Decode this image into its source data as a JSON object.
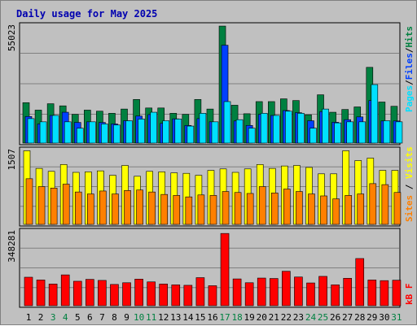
{
  "title": "Daily usage for May 2025",
  "colors": {
    "title": "#0000b0",
    "pages": "#00e0ff",
    "files": "#0040ff",
    "hits": "#008040",
    "visits": "#ffff00",
    "sites": "#ff8000",
    "kbf": "#ff0000",
    "weekend_label": "#008040",
    "weekday_label": "#000000",
    "grid": "#808080",
    "panel_bg": "#c0c0c0"
  },
  "chart_data": [
    {
      "type": "bar",
      "title": "Daily usage for May 2025",
      "panel": "hits-files-pages",
      "ymax_label": "55023",
      "ylim": [
        0,
        55023
      ],
      "categories": [
        "1",
        "2",
        "3",
        "4",
        "5",
        "6",
        "7",
        "8",
        "9",
        "10",
        "11",
        "12",
        "13",
        "14",
        "15",
        "16",
        "17",
        "18",
        "19",
        "20",
        "21",
        "22",
        "23",
        "24",
        "25",
        "26",
        "27",
        "28",
        "29",
        "30",
        "31"
      ],
      "weekend_days": [
        "3",
        "4",
        "10",
        "11",
        "17",
        "18",
        "24",
        "25",
        "31"
      ],
      "legend_labels": [
        "Pages",
        "Files",
        "Hits"
      ],
      "series": [
        {
          "name": "Hits",
          "values": [
            19000,
            15500,
            18500,
            17500,
            13500,
            15500,
            15000,
            14000,
            16000,
            20500,
            16500,
            16500,
            14000,
            13500,
            20500,
            16000,
            55000,
            17800,
            13800,
            19500,
            19500,
            20800,
            20000,
            13300,
            22700,
            14500,
            15800,
            17000,
            35600,
            19300,
            17300
          ]
        },
        {
          "name": "Files",
          "values": [
            12500,
            9000,
            13000,
            14500,
            9700,
            10000,
            9700,
            9000,
            10500,
            12700,
            13400,
            9300,
            11400,
            8300,
            11500,
            10000,
            46000,
            10400,
            8300,
            13500,
            13000,
            15300,
            14300,
            10500,
            14800,
            9800,
            11000,
            12300,
            20000,
            10400,
            10400
          ]
        },
        {
          "name": "Pages",
          "values": [
            11500,
            10000,
            13000,
            10000,
            7000,
            10000,
            9000,
            8500,
            10500,
            11300,
            14500,
            10500,
            11300,
            8000,
            14000,
            10000,
            19500,
            11000,
            7000,
            14000,
            13000,
            15000,
            14000,
            7000,
            16000,
            9500,
            10000,
            10000,
            27500,
            10500,
            10000
          ]
        }
      ]
    },
    {
      "type": "bar",
      "panel": "visits-sites",
      "ymax_label": "1507",
      "ylim": [
        0,
        1507
      ],
      "categories": [
        "1",
        "2",
        "3",
        "4",
        "5",
        "6",
        "7",
        "8",
        "9",
        "10",
        "11",
        "12",
        "13",
        "14",
        "15",
        "16",
        "17",
        "18",
        "19",
        "20",
        "21",
        "22",
        "23",
        "24",
        "25",
        "26",
        "27",
        "28",
        "29",
        "30",
        "31"
      ],
      "legend_labels": [
        "Sites",
        "Visits"
      ],
      "series": [
        {
          "name": "Visits",
          "values": [
            1500,
            1140,
            1080,
            1220,
            1060,
            1070,
            1090,
            1000,
            1200,
            980,
            1080,
            1070,
            1050,
            1040,
            1000,
            1100,
            1130,
            1060,
            1130,
            1220,
            1140,
            1190,
            1200,
            1160,
            1030,
            1030,
            1500,
            1300,
            1350,
            1100,
            1100
          ]
        },
        {
          "name": "Sites",
          "values": [
            930,
            770,
            740,
            820,
            660,
            620,
            680,
            620,
            690,
            700,
            660,
            610,
            590,
            560,
            600,
            590,
            670,
            650,
            630,
            770,
            640,
            720,
            670,
            620,
            580,
            520,
            590,
            620,
            830,
            810,
            650
          ]
        }
      ]
    },
    {
      "type": "bar",
      "panel": "kbf",
      "ymax_label": "348281",
      "ylim": [
        0,
        348281
      ],
      "categories": [
        "1",
        "2",
        "3",
        "4",
        "5",
        "6",
        "7",
        "8",
        "9",
        "10",
        "11",
        "12",
        "13",
        "14",
        "15",
        "16",
        "17",
        "18",
        "19",
        "20",
        "21",
        "22",
        "23",
        "24",
        "25",
        "26",
        "27",
        "28",
        "29",
        "30",
        "31"
      ],
      "legend_labels": [
        "kB F"
      ],
      "series": [
        {
          "name": "kB F",
          "values": [
            134000,
            121000,
            102000,
            145000,
            115000,
            124000,
            119000,
            100000,
            108000,
            125000,
            112000,
            102000,
            98000,
            96000,
            132000,
            94000,
            340000,
            126000,
            108000,
            130000,
            128000,
            162000,
            135000,
            107000,
            138000,
            98000,
            129000,
            222000,
            121000,
            118000,
            120000
          ]
        }
      ]
    }
  ]
}
